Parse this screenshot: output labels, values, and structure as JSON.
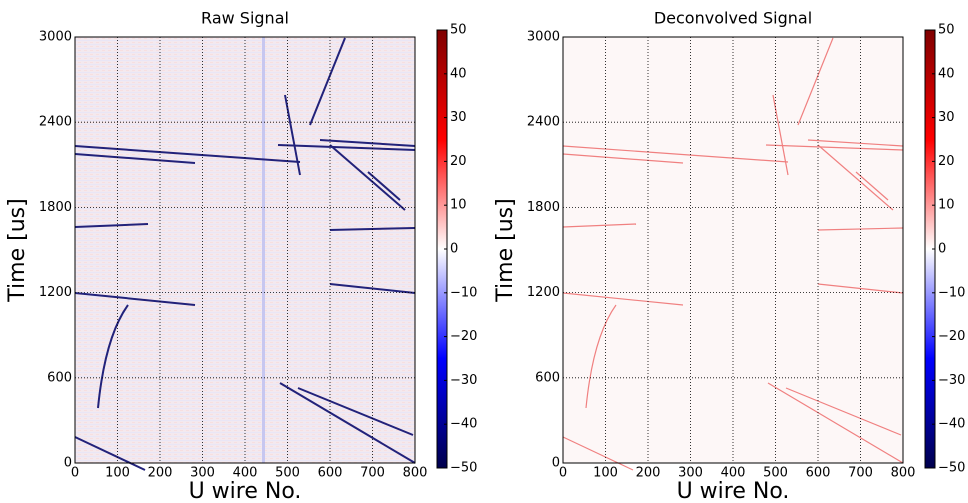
{
  "chart_data": [
    {
      "type": "heatmap",
      "title": "Raw Signal",
      "xlabel": "U wire No.",
      "ylabel": "Time [us]",
      "xlim": [
        0,
        800
      ],
      "ylim": [
        0,
        3000
      ],
      "xticks": [
        0,
        100,
        200,
        300,
        400,
        500,
        600,
        700,
        800
      ],
      "yticks": [
        0,
        600,
        1200,
        1800,
        2400,
        3000
      ],
      "grid": true,
      "colormap": "seismic",
      "colorbar": {
        "lim": [
          -50,
          50
        ],
        "ticks": [
          {
            "value": -50,
            "label": "−50"
          },
          {
            "value": -40,
            "label": "−40"
          },
          {
            "value": -30,
            "label": "−30"
          },
          {
            "value": -20,
            "label": "−20"
          },
          {
            "value": -10,
            "label": "−10"
          },
          0,
          10,
          20,
          30,
          40,
          50
        ]
      }
    },
    {
      "type": "heatmap",
      "title": "Deconvolved Signal",
      "xlabel": "U wire No.",
      "ylabel": "Time [us]",
      "xlim": [
        0,
        800
      ],
      "ylim": [
        0,
        3000
      ],
      "xticks": [
        0,
        100,
        200,
        300,
        400,
        500,
        600,
        700,
        800
      ],
      "yticks": [
        0,
        600,
        1200,
        1800,
        2400,
        3000
      ],
      "grid": true,
      "colormap": "seismic",
      "colorbar": {
        "lim": [
          -50,
          50
        ],
        "ticks": [
          {
            "value": -50,
            "label": "−50"
          },
          {
            "value": -40,
            "label": "−40"
          },
          {
            "value": -30,
            "label": "−30"
          },
          {
            "value": -20,
            "label": "−20"
          },
          {
            "value": -10,
            "label": "−10"
          },
          0,
          10,
          20,
          30,
          40,
          50
        ]
      }
    }
  ]
}
